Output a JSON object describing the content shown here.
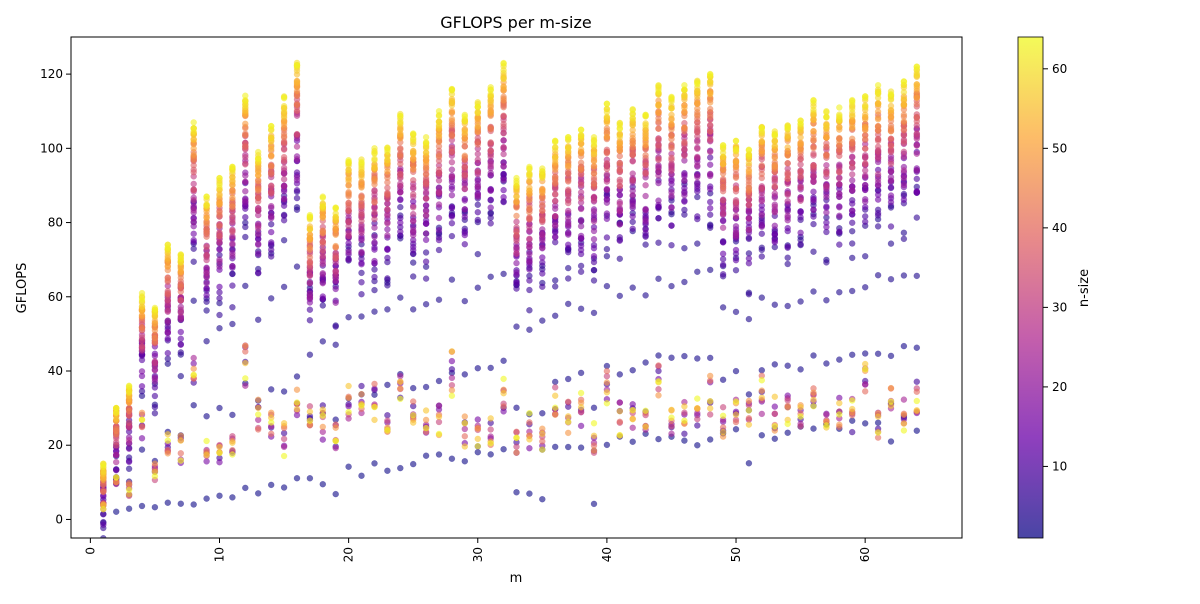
{
  "chart_data": {
    "type": "scatter",
    "title": "GFLOPS per m-size",
    "xlabel": "m",
    "ylabel": "GFLOPS",
    "xlim": [
      -1.5,
      67.5
    ],
    "ylim": [
      -5,
      130
    ],
    "xticks": [
      0,
      10,
      20,
      30,
      40,
      50,
      60
    ],
    "yticks": [
      0,
      20,
      40,
      60,
      80,
      100,
      120
    ],
    "x_tick_label_rotation": 90,
    "grid": false,
    "colormap": "plasma",
    "colormap_stops": [
      "#0d0887",
      "#6a00a8",
      "#b12a90",
      "#e16462",
      "#fca636",
      "#f0f921"
    ],
    "marker_alpha": 0.6,
    "colorbar": {
      "label": "n-size",
      "range": [
        1,
        64
      ],
      "ticks": [
        10,
        20,
        30,
        40,
        50,
        60
      ]
    },
    "series": [
      {
        "x_values": "m = 1 … 64",
        "color_by": "n = 1 … 64",
        "peak_gflops": [
          15,
          30,
          36,
          61,
          57,
          74,
          72,
          107,
          87,
          92,
          95,
          115,
          99,
          106,
          114,
          124,
          82,
          87,
          84,
          98,
          97,
          100,
          101,
          110,
          104,
          103,
          110,
          116,
          109,
          113,
          117,
          123,
          92,
          95,
          95,
          102,
          103,
          105,
          103,
          112,
          107,
          111,
          109,
          117,
          114,
          117,
          119,
          121,
          102,
          102,
          100,
          107,
          105,
          107,
          108,
          113,
          110,
          111,
          113,
          114,
          117,
          116,
          118,
          122
        ],
        "low_band_gflops": [
          5,
          12,
          10,
          30,
          15,
          25,
          22,
          45,
          20,
          22,
          22,
          48,
          32,
          30,
          25,
          37,
          30,
          31,
          25,
          36,
          36,
          36,
          28,
          42,
          33,
          30,
          30,
          45,
          27,
          27,
          27,
          38,
          25,
          27,
          24,
          37,
          32,
          36,
          25,
          41,
          30,
          32,
          30,
          43,
          30,
          32,
          32,
          39,
          31,
          33,
          32,
          38,
          33,
          34,
          31,
          40,
          32,
          34,
          32,
          42,
          30,
          35,
          32,
          39
        ],
        "min_gflops": [
          1,
          2,
          2,
          3,
          3,
          4,
          4,
          5,
          6,
          7,
          7,
          8,
          8,
          9,
          9,
          10,
          11,
          11,
          6,
          13,
          13,
          14,
          14,
          15,
          15,
          16,
          16,
          17,
          17,
          18,
          18,
          19,
          7,
          7,
          6,
          19,
          19,
          20,
          5,
          21,
          21,
          22,
          22,
          23,
          23,
          21,
          21,
          22,
          22,
          23,
          15,
          24,
          23,
          24,
          24,
          25,
          25,
          25,
          26,
          26,
          26,
          22,
          27,
          24
        ]
      }
    ]
  }
}
